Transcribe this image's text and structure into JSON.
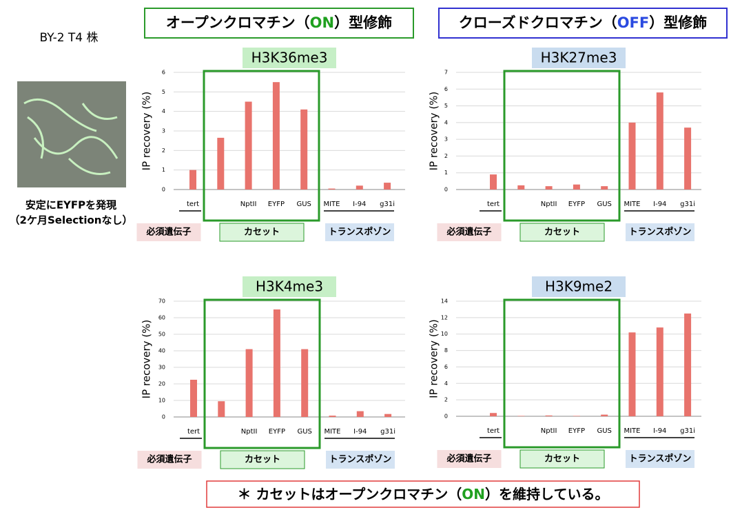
{
  "strain": "BY-2 T4 株",
  "photo_caption": [
    "安定にEYFPを発現",
    "（2ケ月Selectionなし）"
  ],
  "header": {
    "on": [
      "オープンクロマチン（",
      "ON",
      "）型修飾"
    ],
    "off": [
      "クローズドクロマチン（",
      "OFF",
      "）型修飾"
    ]
  },
  "note": [
    "＊ カセットはオープンクロマチン（",
    "ON",
    "）を維持している。"
  ],
  "chart_data": [
    {
      "type": "bar",
      "title": "H3K36me3",
      "ylabel": "IP recovery (%)",
      "color": "#e8736c",
      "grid": true,
      "categories": [
        "tert",
        null,
        "NptII",
        "EYFP",
        "GUS",
        "MITE",
        "I-94",
        "g31i"
      ],
      "values": [
        1.0,
        2.65,
        4.5,
        5.5,
        4.1,
        0.05,
        0.2,
        0.35
      ],
      "ylim": [
        0,
        6
      ],
      "yticks": [
        0,
        1,
        2,
        3,
        4,
        5,
        6
      ],
      "category_groups": [
        "必須遺伝子",
        "カセット",
        "トランスポゾン"
      ]
    },
    {
      "type": "bar",
      "title": "H3K27me3",
      "ylabel": "IP recovery (%)",
      "color": "#e8736c",
      "grid": true,
      "categories": [
        "tert",
        null,
        "NptII",
        "EYFP",
        "GUS",
        "MITE",
        "I-94",
        "g31i"
      ],
      "values": [
        0.9,
        0.25,
        0.2,
        0.3,
        0.2,
        4.0,
        5.8,
        3.7
      ],
      "ylim": [
        0,
        7
      ],
      "yticks": [
        0,
        1,
        2,
        3,
        4,
        5,
        6,
        7
      ],
      "category_groups": [
        "必須遺伝子",
        "カセット",
        "トランスポゾン"
      ]
    },
    {
      "type": "bar",
      "title": "H3K4me3",
      "ylabel": "IP recovery (%)",
      "color": "#e8736c",
      "grid": true,
      "categories": [
        "tert",
        null,
        "NptII",
        "EYFP",
        "GUS",
        "MITE",
        "I-94",
        "g31i"
      ],
      "values": [
        22.5,
        9.5,
        41,
        65,
        41,
        0.8,
        3.5,
        1.8
      ],
      "ylim": [
        0,
        70
      ],
      "yticks": [
        0,
        10,
        20,
        30,
        40,
        50,
        60,
        70
      ],
      "category_groups": [
        "必須遺伝子",
        "カセット",
        "トランスポゾン"
      ]
    },
    {
      "type": "bar",
      "title": "H3K9me2",
      "ylabel": "IP recovery (%)",
      "color": "#e8736c",
      "grid": true,
      "categories": [
        "tert",
        null,
        "NptII",
        "EYFP",
        "GUS",
        "MITE",
        "I-94",
        "g31i"
      ],
      "values": [
        0.4,
        0.05,
        0.1,
        0.05,
        0.2,
        10.2,
        10.8,
        12.5
      ],
      "ylim": [
        0,
        14
      ],
      "yticks": [
        0,
        2,
        4,
        6,
        8,
        10,
        12,
        14
      ],
      "category_groups": [
        "必須遺伝子",
        "カセット",
        "トランスポゾン"
      ]
    }
  ]
}
